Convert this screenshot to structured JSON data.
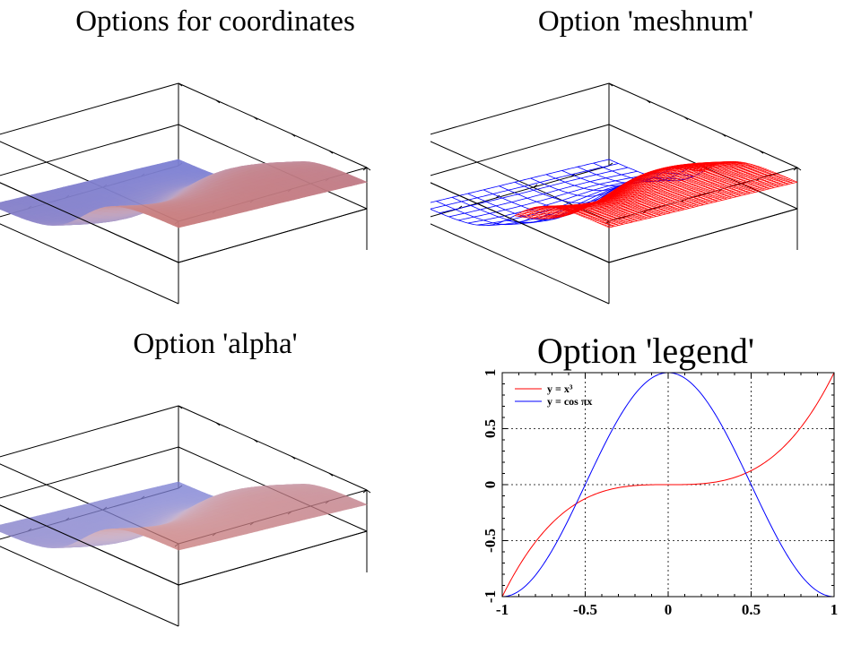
{
  "panels": {
    "tl": {
      "title": "Options for coordinates"
    },
    "tr": {
      "title": "Option 'meshnum'"
    },
    "bl": {
      "title": "Option 'alpha'"
    },
    "br": {
      "title": "Option 'legend'"
    }
  },
  "colors": {
    "surface_low": "#7b7fd4",
    "surface_high": "#c97b7b",
    "mesh_blue": "#0000ff",
    "mesh_red": "#ff0000",
    "line_red": "#ff0000",
    "line_blue": "#0000ff",
    "frame": "#000000"
  },
  "chart_data": [
    {
      "type": "surface",
      "panel": "Options for coordinates",
      "function": "step-shaped surface, low (blue) to high (red)"
    },
    {
      "type": "mesh",
      "panel": "Option 'meshnum'",
      "function": "step-shaped surface drawn as wireframe, blue (coarse) to red (dense)"
    },
    {
      "type": "surface",
      "panel": "Option 'alpha'",
      "function": "step-shaped surface, semi-transparent"
    },
    {
      "type": "line",
      "panel": "Option 'legend'",
      "xlim": [
        -1,
        1
      ],
      "ylim": [
        -1,
        1
      ],
      "xticks": [
        "-1",
        "-0.5",
        "0",
        "0.5",
        "1"
      ],
      "yticks": [
        "-1",
        "-0.5",
        "0",
        "0.5",
        "1"
      ],
      "legend_position": "top-left",
      "series": [
        {
          "name": "y = x³",
          "formula": "x^3",
          "color": "#ff0000",
          "x": [
            -1,
            -0.75,
            -0.5,
            -0.25,
            0,
            0.25,
            0.5,
            0.75,
            1
          ],
          "y": [
            -1,
            -0.42,
            -0.125,
            -0.016,
            0,
            0.016,
            0.125,
            0.42,
            1
          ]
        },
        {
          "name": "y = cos πx",
          "formula": "cos(pi*x)",
          "color": "#0000ff",
          "x": [
            -1,
            -0.75,
            -0.5,
            -0.25,
            0,
            0.25,
            0.5,
            0.75,
            1
          ],
          "y": [
            -1,
            -0.71,
            0,
            0.71,
            1,
            0.71,
            0,
            -0.71,
            -1
          ]
        }
      ]
    }
  ]
}
